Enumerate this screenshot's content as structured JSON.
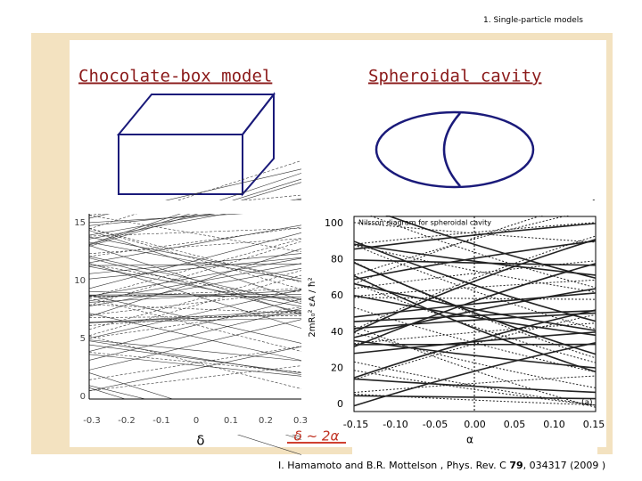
{
  "header": {
    "section": "1. Single-particle models"
  },
  "left": {
    "title": "Chocolate-box model",
    "plot": {
      "yticks": [
        "0",
        "5",
        "10",
        "15"
      ],
      "xticks": [
        "-0.3",
        "-0.2",
        "-0.1",
        "0",
        "0.1",
        "0.2",
        "0.3"
      ],
      "xlabel": "δ"
    }
  },
  "right": {
    "title": "Spheroidal cavity",
    "plot": {
      "title": "Nilsson diagram for spheroidal cavity",
      "ylabel": "2mR₀² εA / ħ²",
      "yticks": [
        "0",
        "20",
        "40",
        "60",
        "80",
        "100"
      ],
      "xticks": [
        "-0.15",
        "-0.10",
        "-0.05",
        "0.00",
        "0.05",
        "0.10",
        "0.15"
      ],
      "xlabel": "α",
      "panel": "(a)"
    }
  },
  "relation": "δ ~ 2α",
  "citation": {
    "authors": "I. Hamamoto and B.R. Mottelson , Phys. Rev. C ",
    "volume": "79",
    "rest": ", 034317 (2009 )"
  }
}
